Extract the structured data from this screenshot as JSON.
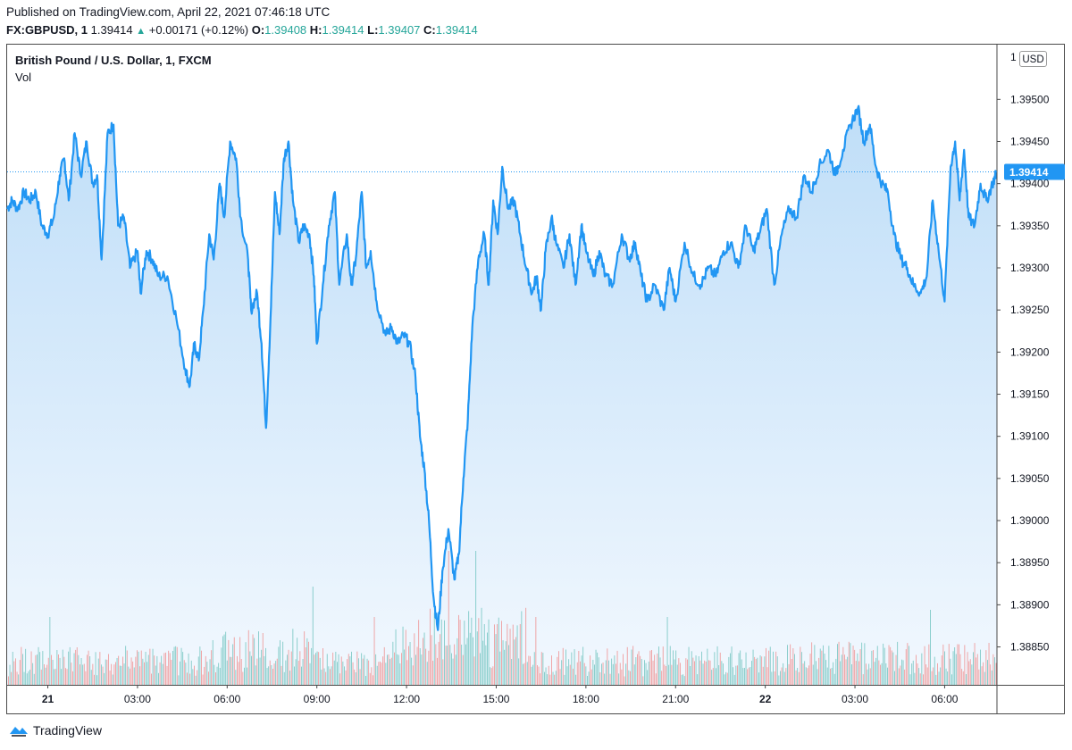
{
  "header": {
    "published": "Published on TradingView.com, April 22, 2021 07:46:18 UTC",
    "symbol": "FX:GBPUSD, 1",
    "last": "1.39414",
    "change": "+0.00171 (+0.12%)",
    "open_label": "O:",
    "open": "1.39408",
    "high_label": "H:",
    "high": "1.39414",
    "low_label": "L:",
    "low": "1.39407",
    "close_label": "C:",
    "close": "1.39414"
  },
  "legend": {
    "title": "British Pound / U.S. Dollar, 1, FXCM",
    "volume": "Vol"
  },
  "currency_unit": "USD",
  "footer": {
    "brand": "TradingView"
  },
  "colors": {
    "line": "#2196f3",
    "area_top": "#bfdef8",
    "area_bottom": "#f2f8fe",
    "volume_up": "#26a69a",
    "volume_down": "#ef5350",
    "price_label_bg": "#2196f3",
    "positive": "#26a69a"
  },
  "chart_data": {
    "type": "area",
    "title": "British Pound / U.S. Dollar, 1, FXCM",
    "interval": "1 minute",
    "xlabel": "",
    "ylabel": "USD",
    "ylim": [
      1.38805,
      1.39565
    ],
    "y_ticks": [
      "1.39500",
      "1.39450",
      "1.39400",
      "1.39350",
      "1.39300",
      "1.39250",
      "1.39200",
      "1.39150",
      "1.39100",
      "1.39050",
      "1.39000",
      "1.38950",
      "1.38900",
      "1.38850"
    ],
    "y_tick_values": [
      1.395,
      1.3945,
      1.394,
      1.3935,
      1.393,
      1.3925,
      1.392,
      1.3915,
      1.391,
      1.3905,
      1.39,
      1.3895,
      1.389,
      1.3885
    ],
    "y_top_partial_label": "1",
    "x_ticks": [
      {
        "label": "21",
        "hours": 0,
        "bold": true
      },
      {
        "label": "03:00",
        "hours": 3,
        "bold": false
      },
      {
        "label": "06:00",
        "hours": 6,
        "bold": false
      },
      {
        "label": "09:00",
        "hours": 9,
        "bold": false
      },
      {
        "label": "12:00",
        "hours": 12,
        "bold": false
      },
      {
        "label": "15:00",
        "hours": 15,
        "bold": false
      },
      {
        "label": "18:00",
        "hours": 18,
        "bold": false
      },
      {
        "label": "21:00",
        "hours": 21,
        "bold": false
      },
      {
        "label": "22",
        "hours": 24,
        "bold": true
      },
      {
        "label": "03:00",
        "hours": 27,
        "bold": false
      },
      {
        "label": "06:00",
        "hours": 30,
        "bold": false
      }
    ],
    "x_range_hours": [
      -1.36,
      31.75
    ],
    "last_price": 1.39414,
    "last_price_label": "1.39414",
    "series": [
      {
        "name": "GBPUSD",
        "points": [
          [
            -1.36,
            1.3937
          ],
          [
            -1.2,
            1.3938
          ],
          [
            -1.0,
            1.3937
          ],
          [
            -0.8,
            1.3939
          ],
          [
            -0.6,
            1.3938
          ],
          [
            -0.4,
            1.3939
          ],
          [
            -0.2,
            1.3935
          ],
          [
            0.0,
            1.3934
          ],
          [
            0.2,
            1.3936
          ],
          [
            0.4,
            1.3941
          ],
          [
            0.55,
            1.3943
          ],
          [
            0.7,
            1.3938
          ],
          [
            0.9,
            1.3946
          ],
          [
            1.1,
            1.3941
          ],
          [
            1.3,
            1.3945
          ],
          [
            1.5,
            1.394
          ],
          [
            1.65,
            1.3941
          ],
          [
            1.8,
            1.3931
          ],
          [
            2.0,
            1.3946
          ],
          [
            2.2,
            1.3947
          ],
          [
            2.35,
            1.3935
          ],
          [
            2.55,
            1.3936
          ],
          [
            2.75,
            1.393
          ],
          [
            3.0,
            1.3932
          ],
          [
            3.1,
            1.3927
          ],
          [
            3.3,
            1.3932
          ],
          [
            3.5,
            1.3931
          ],
          [
            3.7,
            1.3929
          ],
          [
            4.0,
            1.3929
          ],
          [
            4.3,
            1.3924
          ],
          [
            4.6,
            1.3918
          ],
          [
            4.75,
            1.3916
          ],
          [
            4.9,
            1.3921
          ],
          [
            5.05,
            1.3919
          ],
          [
            5.2,
            1.3925
          ],
          [
            5.4,
            1.3934
          ],
          [
            5.55,
            1.3931
          ],
          [
            5.75,
            1.394
          ],
          [
            5.9,
            1.3936
          ],
          [
            6.1,
            1.3945
          ],
          [
            6.3,
            1.3943
          ],
          [
            6.45,
            1.3936
          ],
          [
            6.7,
            1.3931
          ],
          [
            6.8,
            1.3925
          ],
          [
            7.0,
            1.3927
          ],
          [
            7.15,
            1.3921
          ],
          [
            7.3,
            1.3911
          ],
          [
            7.45,
            1.3924
          ],
          [
            7.6,
            1.3939
          ],
          [
            7.75,
            1.3934
          ],
          [
            7.9,
            1.3943
          ],
          [
            8.05,
            1.3945
          ],
          [
            8.2,
            1.3938
          ],
          [
            8.4,
            1.3933
          ],
          [
            8.55,
            1.3935
          ],
          [
            8.75,
            1.3934
          ],
          [
            8.9,
            1.3929
          ],
          [
            9.0,
            1.3921
          ],
          [
            9.2,
            1.3928
          ],
          [
            9.4,
            1.3935
          ],
          [
            9.6,
            1.3939
          ],
          [
            9.75,
            1.3928
          ],
          [
            10.0,
            1.3934
          ],
          [
            10.15,
            1.3928
          ],
          [
            10.3,
            1.3931
          ],
          [
            10.5,
            1.3939
          ],
          [
            10.65,
            1.393
          ],
          [
            10.8,
            1.3932
          ],
          [
            11.0,
            1.3926
          ],
          [
            11.3,
            1.3922
          ],
          [
            11.5,
            1.3923
          ],
          [
            11.7,
            1.3921
          ],
          [
            11.9,
            1.3922
          ],
          [
            12.1,
            1.3921
          ],
          [
            12.3,
            1.3917
          ],
          [
            12.45,
            1.391
          ],
          [
            12.6,
            1.3906
          ],
          [
            12.75,
            1.39
          ],
          [
            12.9,
            1.3891
          ],
          [
            13.05,
            1.3887
          ],
          [
            13.2,
            1.3894
          ],
          [
            13.4,
            1.3899
          ],
          [
            13.6,
            1.3893
          ],
          [
            13.75,
            1.3896
          ],
          [
            13.9,
            1.3905
          ],
          [
            14.05,
            1.3912
          ],
          [
            14.2,
            1.3923
          ],
          [
            14.4,
            1.3931
          ],
          [
            14.6,
            1.3934
          ],
          [
            14.75,
            1.3928
          ],
          [
            14.9,
            1.3938
          ],
          [
            15.05,
            1.3934
          ],
          [
            15.2,
            1.3942
          ],
          [
            15.4,
            1.3937
          ],
          [
            15.6,
            1.3938
          ],
          [
            15.8,
            1.3934
          ],
          [
            16.0,
            1.393
          ],
          [
            16.2,
            1.3927
          ],
          [
            16.35,
            1.3929
          ],
          [
            16.5,
            1.3925
          ],
          [
            16.65,
            1.3932
          ],
          [
            16.85,
            1.3936
          ],
          [
            17.0,
            1.3933
          ],
          [
            17.25,
            1.393
          ],
          [
            17.45,
            1.3934
          ],
          [
            17.65,
            1.3928
          ],
          [
            17.85,
            1.3935
          ],
          [
            18.0,
            1.3932
          ],
          [
            18.25,
            1.3929
          ],
          [
            18.45,
            1.3932
          ],
          [
            18.65,
            1.3929
          ],
          [
            18.9,
            1.3928
          ],
          [
            19.2,
            1.3934
          ],
          [
            19.45,
            1.3931
          ],
          [
            19.65,
            1.3933
          ],
          [
            19.85,
            1.3929
          ],
          [
            20.05,
            1.3926
          ],
          [
            20.3,
            1.3928
          ],
          [
            20.6,
            1.3925
          ],
          [
            20.8,
            1.393
          ],
          [
            21.0,
            1.3926
          ],
          [
            21.3,
            1.3933
          ],
          [
            21.6,
            1.3929
          ],
          [
            21.85,
            1.3928
          ],
          [
            22.1,
            1.393
          ],
          [
            22.35,
            1.3929
          ],
          [
            22.6,
            1.3932
          ],
          [
            22.85,
            1.3933
          ],
          [
            23.1,
            1.393
          ],
          [
            23.35,
            1.3935
          ],
          [
            23.6,
            1.3932
          ],
          [
            23.8,
            1.3934
          ],
          [
            24.05,
            1.3937
          ],
          [
            24.3,
            1.3928
          ],
          [
            24.55,
            1.3934
          ],
          [
            24.8,
            1.3937
          ],
          [
            25.05,
            1.3936
          ],
          [
            25.3,
            1.3941
          ],
          [
            25.55,
            1.3939
          ],
          [
            25.8,
            1.3942
          ],
          [
            26.1,
            1.3944
          ],
          [
            26.35,
            1.3941
          ],
          [
            26.6,
            1.3944
          ],
          [
            26.85,
            1.3947
          ],
          [
            27.1,
            1.3949
          ],
          [
            27.3,
            1.3945
          ],
          [
            27.5,
            1.3947
          ],
          [
            27.7,
            1.3942
          ],
          [
            27.9,
            1.394
          ],
          [
            28.1,
            1.3939
          ],
          [
            28.3,
            1.3934
          ],
          [
            28.55,
            1.3931
          ],
          [
            28.75,
            1.393
          ],
          [
            28.95,
            1.3928
          ],
          [
            29.2,
            1.3927
          ],
          [
            29.4,
            1.3929
          ],
          [
            29.6,
            1.3938
          ],
          [
            29.8,
            1.3932
          ],
          [
            30.0,
            1.3926
          ],
          [
            30.2,
            1.3942
          ],
          [
            30.35,
            1.3945
          ],
          [
            30.5,
            1.3938
          ],
          [
            30.65,
            1.3944
          ],
          [
            30.8,
            1.3936
          ],
          [
            31.0,
            1.3935
          ],
          [
            31.2,
            1.394
          ],
          [
            31.4,
            1.3938
          ],
          [
            31.6,
            1.394
          ],
          [
            31.75,
            1.39414
          ]
        ]
      }
    ]
  }
}
